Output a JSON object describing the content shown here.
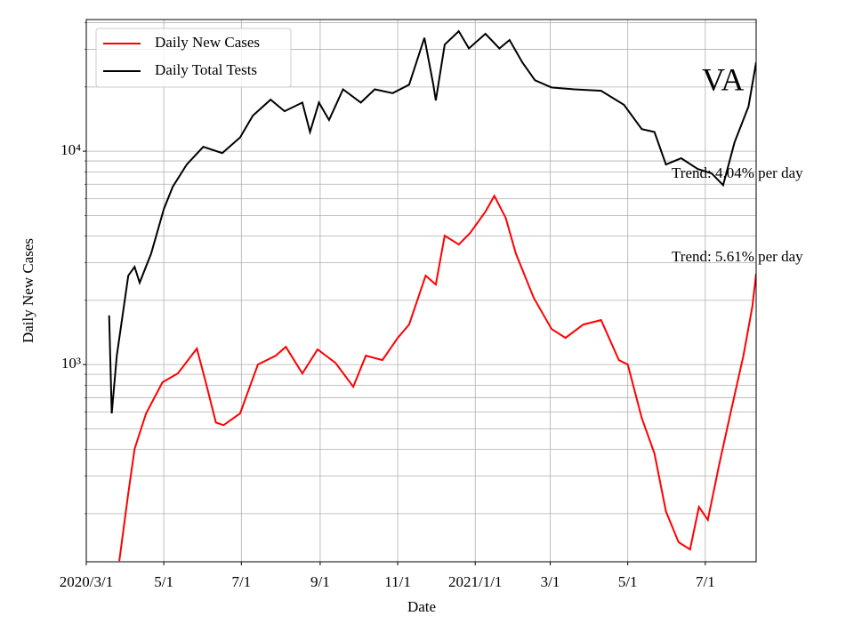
{
  "chart_data": {
    "type": "line",
    "xlabel": "Date",
    "ylabel": "Daily New Cases",
    "annotations": [
      "VA",
      "Trend: 4.04% per day",
      "Trend: 5.61% per day"
    ],
    "log_y": true,
    "grid": true,
    "legend": "upper left",
    "xlim": [
      "2020-03-01",
      "2021-08-10"
    ],
    "xticks": [
      {
        "value": "2020-03-01",
        "label": "2020/3/1"
      },
      {
        "value": "2020-05-01",
        "label": "5/1"
      },
      {
        "value": "2020-07-01",
        "label": "7/1"
      },
      {
        "value": "2020-09-01",
        "label": "9/1"
      },
      {
        "value": "2020-11-01",
        "label": "11/1"
      },
      {
        "value": "2021-01-01",
        "label": "2021/1/1"
      },
      {
        "value": "2021-03-01",
        "label": "3/1"
      },
      {
        "value": "2021-05-01",
        "label": "5/1"
      },
      {
        "value": "2021-07-01",
        "label": "7/1"
      }
    ],
    "ylim": [
      119,
      41400
    ],
    "yticks": [
      {
        "value": 1000,
        "label": "10³"
      },
      {
        "value": 10000,
        "label": "10⁴"
      }
    ],
    "yminorticks": [
      200,
      300,
      400,
      500,
      600,
      700,
      800,
      900,
      2000,
      3000,
      4000,
      5000,
      6000,
      7000,
      8000,
      9000,
      20000,
      30000,
      40000
    ],
    "series": [
      {
        "name": "Daily New Cases",
        "color": "#ff0000",
        "x": [
          "2020-03-27",
          "2020-04-03",
          "2020-04-08",
          "2020-04-17",
          "2020-04-30",
          "2020-05-12",
          "2020-05-27",
          "2020-06-03",
          "2020-06-11",
          "2020-06-17",
          "2020-06-30",
          "2020-07-14",
          "2020-07-28",
          "2020-08-05",
          "2020-08-18",
          "2020-08-30",
          "2020-09-13",
          "2020-09-27",
          "2020-10-07",
          "2020-10-20",
          "2020-11-01",
          "2020-11-10",
          "2020-11-23",
          "2020-12-01",
          "2020-12-08",
          "2020-12-19",
          "2020-12-28",
          "2021-01-09",
          "2021-01-16",
          "2021-01-25",
          "2021-02-02",
          "2021-02-16",
          "2021-03-02",
          "2021-03-13",
          "2021-03-27",
          "2021-04-10",
          "2021-04-24",
          "2021-05-01",
          "2021-05-12",
          "2021-05-22",
          "2021-05-31",
          "2021-06-10",
          "2021-06-19",
          "2021-06-26",
          "2021-07-03",
          "2021-07-12",
          "2021-07-20",
          "2021-07-31",
          "2021-08-07",
          "2021-08-10"
        ],
        "values": [
          120,
          249,
          402,
          590,
          826,
          909,
          1189,
          826,
          535,
          520,
          590,
          1000,
          1101,
          1211,
          909,
          1177,
          1019,
          787,
          1101,
          1049,
          1334,
          1540,
          2610,
          2371,
          4019,
          3652,
          4137,
          5210,
          6170,
          4870,
          3310,
          2054,
          1468,
          1334,
          1540,
          1616,
          1049,
          1000,
          562,
          383,
          205,
          147,
          136,
          215,
          187,
          342,
          562,
          1101,
          1865,
          2660
        ]
      },
      {
        "name": "Daily Total Tests",
        "color": "#000000",
        "x": [
          "2020-03-19",
          "2020-03-21",
          "2020-03-25",
          "2020-04-03",
          "2020-04-08",
          "2020-04-12",
          "2020-04-21",
          "2020-05-01",
          "2020-05-08",
          "2020-05-19",
          "2020-06-01",
          "2020-06-16",
          "2020-06-30",
          "2020-07-10",
          "2020-07-24",
          "2020-08-04",
          "2020-08-18",
          "2020-08-24",
          "2020-08-31",
          "2020-09-08",
          "2020-09-19",
          "2020-10-03",
          "2020-10-14",
          "2020-10-28",
          "2020-11-10",
          "2020-11-22",
          "2020-11-29",
          "2020-12-01",
          "2020-12-08",
          "2020-12-19",
          "2020-12-27",
          "2021-01-09",
          "2021-01-20",
          "2021-01-28",
          "2021-02-07",
          "2021-02-17",
          "2021-03-02",
          "2021-03-20",
          "2021-04-10",
          "2021-04-28",
          "2021-05-12",
          "2021-05-22",
          "2021-05-31",
          "2021-06-12",
          "2021-06-25",
          "2021-07-06",
          "2021-07-15",
          "2021-07-24",
          "2021-08-04",
          "2021-08-10"
        ],
        "values": [
          1700,
          590,
          1101,
          2610,
          2870,
          2420,
          3310,
          5360,
          6810,
          8660,
          10480,
          9800,
          11600,
          14680,
          17450,
          15400,
          16900,
          12300,
          16900,
          14000,
          19500,
          16900,
          19500,
          18700,
          20500,
          34000,
          20500,
          17300,
          31600,
          36500,
          30300,
          35500,
          30300,
          33200,
          26100,
          21500,
          19900,
          19500,
          19200,
          16500,
          12700,
          12300,
          8660,
          9270,
          8250,
          7870,
          6930,
          11000,
          16200,
          26100
        ]
      }
    ]
  }
}
